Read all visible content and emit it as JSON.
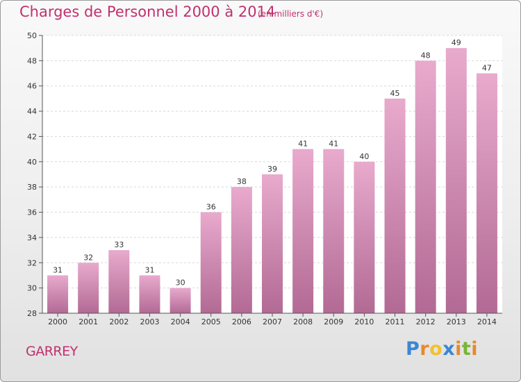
{
  "title": "Charges de Personnel 2000 à 2014",
  "subtitle": "(en milliers d'€)",
  "commune": "GARREY",
  "logo": {
    "letters": [
      "P",
      "r",
      "o",
      "x",
      "i",
      "t",
      "i"
    ],
    "colors": [
      "#3a86d6",
      "#e8892b",
      "#f2c12e",
      "#3a86d6",
      "#e8892b",
      "#79b538",
      "#e8892b"
    ]
  },
  "colors": {
    "accent": "#c0306e",
    "bar_top": "#e8aacd",
    "bar_bottom": "#b26a94",
    "grid": "#d8d8d8",
    "axis": "#555555"
  },
  "chart_data": {
    "type": "bar",
    "categories": [
      "2000",
      "2001",
      "2002",
      "2003",
      "2004",
      "2005",
      "2006",
      "2007",
      "2008",
      "2009",
      "2010",
      "2011",
      "2012",
      "2013",
      "2014"
    ],
    "values": [
      31,
      32,
      33,
      31,
      30,
      36,
      38,
      39,
      41,
      41,
      40,
      45,
      48,
      49,
      47
    ],
    "ylim": [
      28,
      50
    ],
    "yticks": [
      28,
      30,
      32,
      34,
      36,
      38,
      40,
      42,
      44,
      46,
      48,
      50
    ],
    "xlabel": "",
    "ylabel": "",
    "grid": true,
    "data_labels": true
  }
}
